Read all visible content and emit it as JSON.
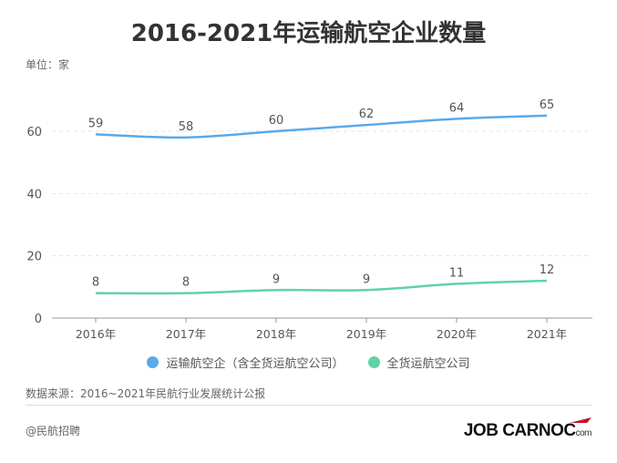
{
  "chart_data": {
    "type": "line",
    "title": "2016-2021年运输航空企业数量",
    "unit_label": "单位：家",
    "categories": [
      "2016年",
      "2017年",
      "2018年",
      "2019年",
      "2020年",
      "2021年"
    ],
    "ylim": [
      0,
      70
    ],
    "yticks": [
      "0",
      "20",
      "40",
      "60"
    ],
    "grid": true,
    "legend_position": "bottom",
    "series": [
      {
        "name": "运输航空企（含全货运航空公司）",
        "color": "#5aa9ea",
        "values": [
          59,
          58,
          60,
          62,
          64,
          65
        ]
      },
      {
        "name": "全货运航空公司",
        "color": "#5fd3a6",
        "values": [
          8,
          8,
          9,
          9,
          11,
          12
        ]
      }
    ]
  },
  "footer": {
    "source": "数据来源：2016~2021年民航行业发展统计公报",
    "handle": "@民航招聘",
    "logo_text": "JOB CARNOC",
    "logo_suffix": "com"
  }
}
